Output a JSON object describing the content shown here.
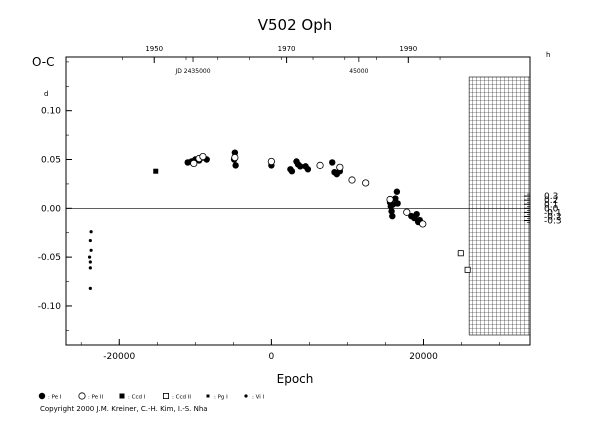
{
  "chart_data": {
    "type": "scatter",
    "title": "V502 Oph",
    "ylabel": "O-C",
    "xlabel": "Epoch",
    "xlim": [
      -27000,
      34000
    ],
    "ylim": [
      -0.14,
      0.155
    ],
    "x_ticks": [
      {
        "value": -20000,
        "label": "-20000"
      },
      {
        "value": 0,
        "label": "0"
      },
      {
        "value": 20000,
        "label": "20000"
      }
    ],
    "y_ticks_left": [
      {
        "value": -0.1,
        "label": "-0.10"
      },
      {
        "value": -0.05,
        "label": "-0.05"
      },
      {
        "value": 0.0,
        "label": "0.00"
      },
      {
        "value": 0.05,
        "label": "0.05"
      },
      {
        "value": 0.1,
        "label": "0.10"
      }
    ],
    "y_left_unit_mark": "d",
    "y_right_unit_mark": "h",
    "y_ticks_right": [
      {
        "value": -0.3,
        "label": "-0.3"
      },
      {
        "value": -0.2,
        "label": "-0.2"
      },
      {
        "value": -0.1,
        "label": "-0.1"
      },
      {
        "value": 0.0,
        "label": "0.0"
      },
      {
        "value": 0.1,
        "label": "0.1"
      },
      {
        "value": 0.2,
        "label": "0.2"
      },
      {
        "value": 0.3,
        "label": "0.3"
      }
    ],
    "top_year_ticks": [
      {
        "label": "1950",
        "epoch": -15400
      },
      {
        "label": "1970",
        "epoch": 2000
      },
      {
        "label": "1990",
        "epoch": 18000
      }
    ],
    "top_jd_labels": [
      {
        "label": "JD 2435000",
        "epoch": -10300
      },
      {
        "label": "45000",
        "epoch": 11500
      }
    ],
    "zero_line": 0,
    "hatched_region": [
      26000,
      34000
    ],
    "legend": [
      {
        "symbol": "filled-circle",
        "label": ": Pe I"
      },
      {
        "symbol": "open-circle",
        "label": ": Pe II"
      },
      {
        "symbol": "filled-square",
        "label": ": Ccd I"
      },
      {
        "symbol": "open-square",
        "label": ": Ccd II"
      },
      {
        "symbol": "small-square",
        "label": ": Pg I"
      },
      {
        "symbol": "small-dot",
        "label": ": Vi I"
      }
    ],
    "series": [
      {
        "name": ": Pe I",
        "symbol": "filled-circle",
        "points": [
          [
            -11000,
            0.047
          ],
          [
            -10500,
            0.048
          ],
          [
            -10000,
            0.05
          ],
          [
            -9500,
            0.049
          ],
          [
            -9000,
            0.052
          ],
          [
            -8500,
            0.05
          ],
          [
            -4800,
            0.057
          ],
          [
            -4700,
            0.044
          ],
          [
            -4900,
            0.05
          ],
          [
            0,
            0.044
          ],
          [
            2500,
            0.04
          ],
          [
            2700,
            0.038
          ],
          [
            3300,
            0.048
          ],
          [
            3500,
            0.045
          ],
          [
            3800,
            0.043
          ],
          [
            4500,
            0.043
          ],
          [
            4800,
            0.04
          ],
          [
            8000,
            0.047
          ],
          [
            8300,
            0.037
          ],
          [
            8600,
            0.035
          ],
          [
            9000,
            0.038
          ],
          [
            15600,
            0.006
          ],
          [
            15700,
            0.002
          ],
          [
            15800,
            -0.003
          ],
          [
            15900,
            -0.008
          ],
          [
            16000,
            0.004
          ],
          [
            16300,
            0.01
          ],
          [
            16500,
            0.017
          ],
          [
            16600,
            0.005
          ],
          [
            18400,
            -0.008
          ],
          [
            18800,
            -0.01
          ],
          [
            19100,
            -0.006
          ],
          [
            19300,
            -0.014
          ],
          [
            19500,
            -0.012
          ]
        ]
      },
      {
        "name": ": Pe II",
        "symbol": "open-circle",
        "points": [
          [
            -10200,
            0.046
          ],
          [
            -9500,
            0.051
          ],
          [
            -9000,
            0.053
          ],
          [
            -4800,
            0.052
          ],
          [
            0,
            0.048
          ],
          [
            6400,
            0.044
          ],
          [
            9000,
            0.042
          ],
          [
            10600,
            0.029
          ],
          [
            12400,
            0.026
          ],
          [
            15600,
            0.009
          ],
          [
            17800,
            -0.004
          ],
          [
            19900,
            -0.016
          ]
        ]
      },
      {
        "name": ": Ccd I",
        "symbol": "filled-square",
        "points": [
          [
            -15200,
            0.038
          ]
        ]
      },
      {
        "name": ": Ccd II",
        "symbol": "open-square",
        "points": [
          [
            24900,
            -0.046
          ],
          [
            25800,
            -0.063
          ]
        ]
      },
      {
        "name": ": Vi I",
        "symbol": "small-dot",
        "points": [
          [
            -23700,
            -0.024
          ],
          [
            -23800,
            -0.033
          ],
          [
            -23700,
            -0.043
          ],
          [
            -23900,
            -0.05
          ],
          [
            -23800,
            -0.055
          ],
          [
            -23800,
            -0.061
          ],
          [
            -23800,
            -0.082
          ]
        ]
      }
    ]
  },
  "copyright": "Copyright 2000 J.M. Kreiner, C.-H. Kim, I.-S. Nha"
}
